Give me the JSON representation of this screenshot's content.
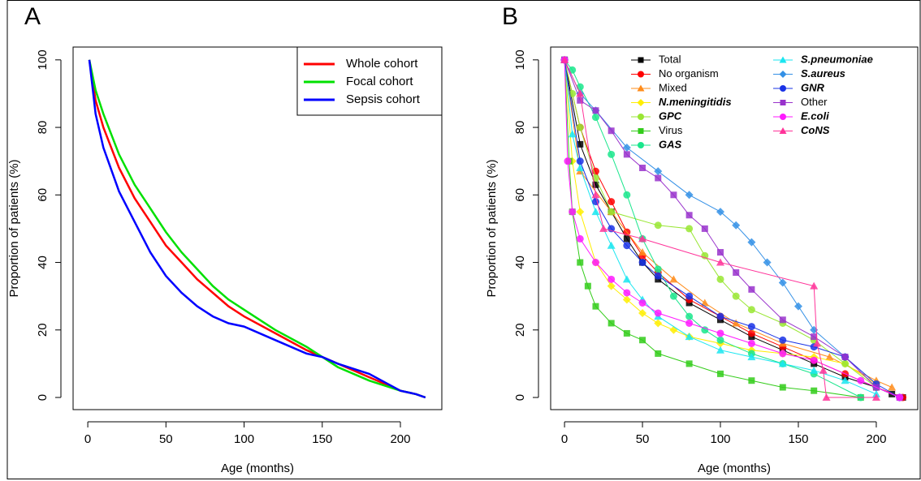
{
  "chart_data": [
    {
      "type": "line",
      "title": "A",
      "xlabel": "Age (months)",
      "ylabel": "Proportion of patients (%)",
      "xlim": [
        -9.4,
        226.5
      ],
      "ylim": [
        -3.6,
        103.8
      ],
      "xticks": [
        0,
        50,
        100,
        150,
        200
      ],
      "yticks": [
        0,
        20,
        40,
        60,
        80,
        100
      ],
      "legend": "top-right",
      "legend_columns": 1,
      "legend_frame": true,
      "markers": false,
      "series": [
        {
          "name": "Whole cohort",
          "color": "#ff0000",
          "x": [
            1,
            5,
            10,
            20,
            30,
            40,
            50,
            60,
            70,
            80,
            90,
            100,
            120,
            140,
            150,
            160,
            180,
            200,
            210,
            216
          ],
          "values": [
            100,
            88,
            80,
            68,
            59,
            52,
            45,
            40,
            35,
            31,
            27,
            24,
            19,
            14,
            12,
            10,
            6,
            2,
            1,
            0
          ]
        },
        {
          "name": "Focal cohort",
          "color": "#00e000",
          "x": [
            1,
            5,
            10,
            20,
            30,
            40,
            50,
            60,
            70,
            80,
            90,
            100,
            120,
            140,
            150,
            160,
            180,
            200,
            210,
            216
          ],
          "values": [
            100,
            91,
            84,
            72,
            63,
            56,
            49,
            43,
            38,
            33,
            29,
            26,
            20,
            15,
            12,
            9,
            5,
            2,
            1,
            0
          ]
        },
        {
          "name": "Sepsis cohort",
          "color": "#0000ff",
          "x": [
            1,
            5,
            10,
            20,
            30,
            40,
            50,
            60,
            70,
            80,
            90,
            100,
            120,
            140,
            150,
            160,
            180,
            200,
            210,
            216
          ],
          "values": [
            100,
            84,
            74,
            61,
            52,
            43,
            36,
            31,
            27,
            24,
            22,
            21,
            17,
            13,
            12,
            10,
            7,
            2,
            1,
            0
          ]
        }
      ]
    },
    {
      "type": "line",
      "title": "B",
      "xlabel": "Age (months)",
      "ylabel": "Proportion of patients (%)",
      "xlim": [
        -8.9,
        226.6
      ],
      "ylim": [
        -3.6,
        103.8
      ],
      "xticks": [
        0,
        50,
        100,
        150,
        200
      ],
      "yticks": [
        0,
        20,
        40,
        60,
        80,
        100
      ],
      "legend": "top",
      "legend_columns": 2,
      "legend_frame": false,
      "markers": true,
      "series": [
        {
          "name": "Total",
          "color": "#000000",
          "marker": "square",
          "italic": false,
          "x": [
            0,
            10,
            20,
            30,
            40,
            50,
            60,
            80,
            100,
            120,
            140,
            160,
            180,
            200,
            210,
            217
          ],
          "values": [
            100,
            75,
            63,
            55,
            47,
            40,
            35,
            28,
            23,
            18,
            14,
            10,
            6,
            3,
            1,
            0
          ]
        },
        {
          "name": "No organism",
          "color": "#ff0000",
          "marker": "circle",
          "italic": false,
          "x": [
            0,
            10,
            20,
            30,
            40,
            50,
            60,
            80,
            100,
            120,
            140,
            160,
            180,
            200,
            217
          ],
          "values": [
            100,
            80,
            67,
            58,
            49,
            42,
            37,
            29,
            24,
            19,
            15,
            11,
            7,
            3,
            0
          ]
        },
        {
          "name": "Mixed",
          "color": "#ff8c1a",
          "marker": "triangle",
          "italic": false,
          "x": [
            0,
            10,
            30,
            50,
            70,
            90,
            110,
            140,
            170,
            200,
            210
          ],
          "values": [
            100,
            67,
            55,
            43,
            35,
            28,
            22,
            16,
            12,
            5,
            3
          ]
        },
        {
          "name": "N.meningitidis",
          "color": "#ffee00",
          "marker": "diamond",
          "italic": true,
          "x": [
            0,
            5,
            10,
            20,
            30,
            40,
            50,
            60,
            70,
            80,
            100,
            120,
            140,
            160,
            180,
            200
          ],
          "values": [
            100,
            70,
            55,
            40,
            33,
            29,
            25,
            22,
            20,
            18,
            16,
            14,
            13,
            12,
            10,
            4
          ]
        },
        {
          "name": "GPC",
          "color": "#99e633",
          "marker": "circle",
          "italic": true,
          "x": [
            0,
            5,
            10,
            20,
            30,
            60,
            80,
            90,
            100,
            110,
            120,
            140,
            160,
            180,
            200
          ],
          "values": [
            100,
            90,
            80,
            65,
            55,
            51,
            50,
            42,
            35,
            30,
            26,
            22,
            17,
            10,
            3
          ]
        },
        {
          "name": "Virus",
          "color": "#33cc1a",
          "marker": "square",
          "italic": false,
          "x": [
            0,
            3,
            5,
            10,
            15,
            20,
            30,
            40,
            50,
            60,
            80,
            100,
            120,
            140,
            160,
            190
          ],
          "values": [
            100,
            70,
            55,
            40,
            33,
            27,
            22,
            19,
            17,
            13,
            10,
            7,
            5,
            3,
            2,
            0
          ]
        },
        {
          "name": "GAS",
          "color": "#1ae68c",
          "marker": "circle",
          "italic": true,
          "x": [
            0,
            5,
            10,
            20,
            30,
            40,
            50,
            60,
            70,
            80,
            90,
            100,
            120,
            140,
            160,
            190
          ],
          "values": [
            100,
            97,
            92,
            83,
            72,
            60,
            47,
            38,
            30,
            24,
            20,
            17,
            13,
            10,
            7,
            0
          ]
        },
        {
          "name": "S.pneumoniae",
          "color": "#1ae6f0",
          "marker": "triangle",
          "italic": true,
          "x": [
            0,
            5,
            10,
            20,
            30,
            40,
            50,
            60,
            80,
            100,
            120,
            140,
            160,
            180,
            200
          ],
          "values": [
            100,
            78,
            68,
            55,
            45,
            35,
            29,
            24,
            18,
            14,
            12,
            10,
            8,
            5,
            1
          ]
        },
        {
          "name": "S.aureus",
          "color": "#3390e6",
          "marker": "diamond",
          "italic": true,
          "x": [
            0,
            10,
            20,
            40,
            60,
            80,
            100,
            110,
            120,
            130,
            140,
            150,
            160,
            180,
            200,
            215
          ],
          "values": [
            100,
            90,
            85,
            74,
            67,
            60,
            55,
            51,
            46,
            40,
            34,
            27,
            20,
            12,
            3,
            0
          ]
        },
        {
          "name": "GNR",
          "color": "#1a33e6",
          "marker": "circle",
          "italic": true,
          "x": [
            0,
            10,
            20,
            30,
            40,
            50,
            60,
            80,
            100,
            120,
            140,
            160,
            180,
            200,
            215
          ],
          "values": [
            100,
            70,
            58,
            50,
            45,
            40,
            36,
            30,
            24,
            21,
            17,
            15,
            12,
            4,
            0
          ]
        },
        {
          "name": "Other",
          "color": "#9933cc",
          "marker": "square",
          "italic": false,
          "x": [
            0,
            10,
            20,
            30,
            40,
            50,
            60,
            70,
            80,
            90,
            100,
            110,
            120,
            140,
            160,
            180,
            200,
            215
          ],
          "values": [
            100,
            88,
            85,
            79,
            72,
            68,
            65,
            60,
            54,
            50,
            43,
            37,
            32,
            23,
            18,
            12,
            3,
            0
          ]
        },
        {
          "name": "E.coli",
          "color": "#ff1aff",
          "marker": "circle",
          "italic": true,
          "x": [
            0,
            2,
            5,
            10,
            20,
            30,
            40,
            50,
            60,
            80,
            100,
            120,
            140,
            160,
            190,
            215
          ],
          "values": [
            100,
            70,
            55,
            47,
            40,
            35,
            31,
            28,
            25,
            22,
            19,
            16,
            13,
            11,
            5,
            0
          ]
        },
        {
          "name": "CoNS",
          "color": "#ff3399",
          "marker": "triangle",
          "italic": true,
          "x": [
            0,
            10,
            20,
            25,
            50,
            100,
            160,
            162,
            166,
            168,
            200
          ],
          "values": [
            100,
            90,
            60,
            50,
            47,
            40,
            33,
            16,
            8,
            0,
            0
          ]
        }
      ]
    }
  ]
}
